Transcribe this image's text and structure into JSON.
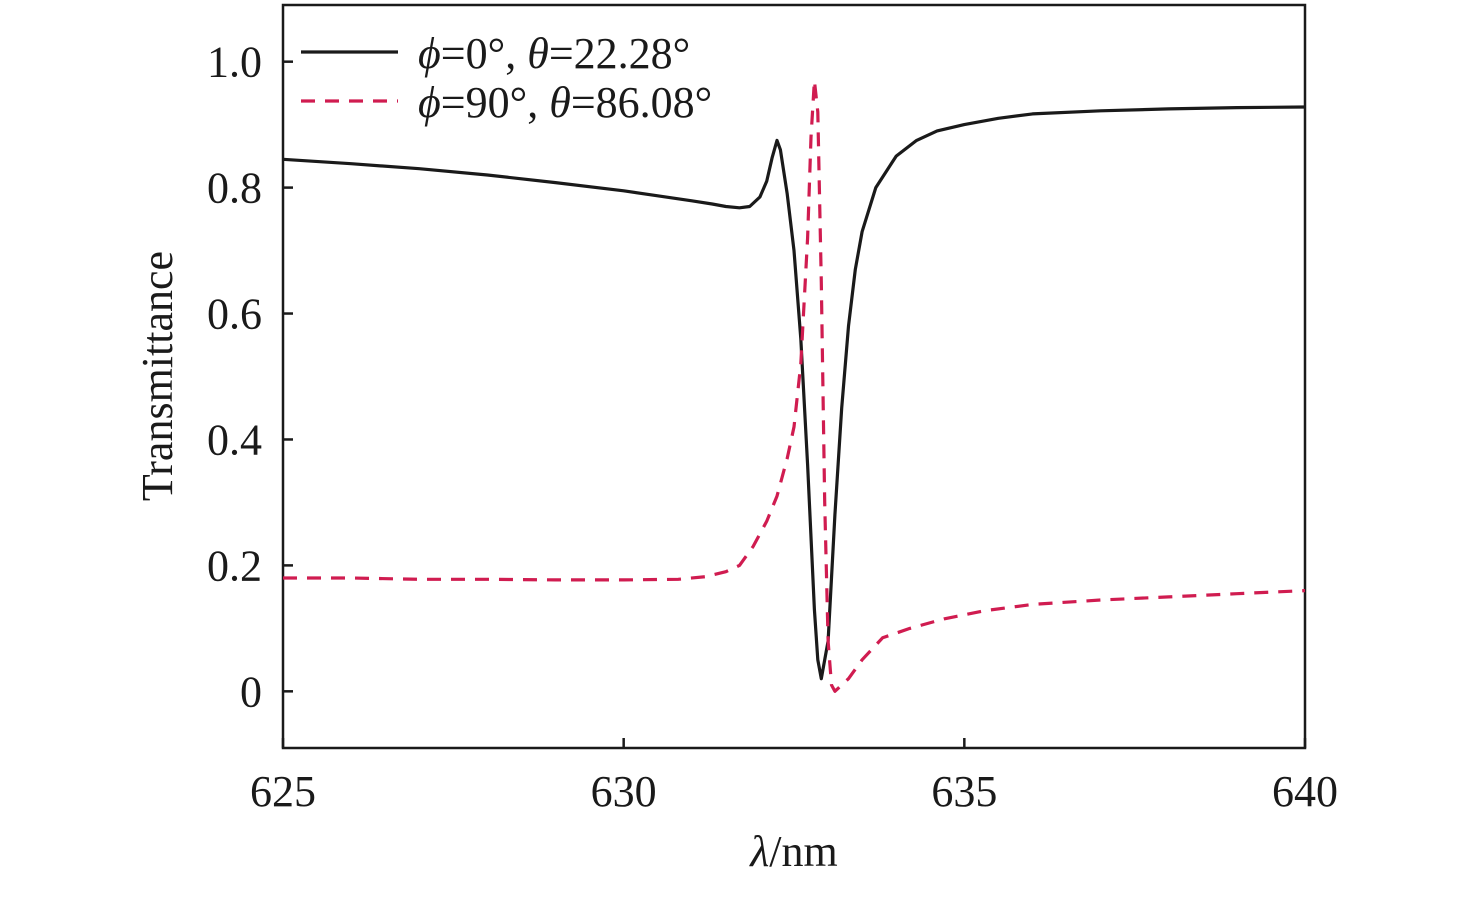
{
  "chart_data": {
    "type": "line",
    "title": "",
    "xlabel_italic": "λ",
    "xlabel_rest": "/nm",
    "ylabel": "Transmittance",
    "xlim": [
      625,
      640
    ],
    "ylim": [
      -0.09,
      1.09
    ],
    "xticks": [
      625,
      630,
      635,
      640
    ],
    "xtick_labels": [
      "625",
      "630",
      "635",
      "640"
    ],
    "yticks": [
      0,
      0.2,
      0.4,
      0.6,
      0.8,
      1.0
    ],
    "ytick_labels": [
      "0",
      "0.2",
      "0.4",
      "0.6",
      "0.8",
      "1.0"
    ],
    "grid": false,
    "legend_position": "top-left",
    "series": [
      {
        "legend_parts": [
          {
            "text": "ϕ",
            "italic": true
          },
          {
            "text": "=0°, ",
            "italic": false
          },
          {
            "text": "θ",
            "italic": true
          },
          {
            "text": "=22.28°",
            "italic": false
          }
        ],
        "style": "solid",
        "color": "#1a1a1a",
        "x": [
          625.0,
          626.0,
          627.0,
          628.0,
          629.0,
          630.0,
          630.5,
          631.0,
          631.3,
          631.5,
          631.7,
          631.85,
          632.0,
          632.1,
          632.18,
          632.25,
          632.3,
          632.4,
          632.5,
          632.6,
          632.7,
          632.8,
          632.85,
          632.9,
          633.0,
          633.1,
          633.2,
          633.3,
          633.4,
          633.5,
          633.7,
          634.0,
          634.3,
          634.6,
          635.0,
          635.5,
          636.0,
          637.0,
          638.0,
          639.0,
          640.0
        ],
        "values": [
          0.845,
          0.838,
          0.83,
          0.82,
          0.808,
          0.795,
          0.787,
          0.779,
          0.774,
          0.77,
          0.768,
          0.77,
          0.785,
          0.81,
          0.848,
          0.875,
          0.86,
          0.79,
          0.7,
          0.56,
          0.36,
          0.13,
          0.05,
          0.02,
          0.08,
          0.28,
          0.45,
          0.58,
          0.67,
          0.73,
          0.8,
          0.85,
          0.875,
          0.89,
          0.9,
          0.91,
          0.917,
          0.922,
          0.925,
          0.927,
          0.928
        ]
      },
      {
        "legend_parts": [
          {
            "text": "ϕ",
            "italic": true
          },
          {
            "text": "=90°, ",
            "italic": false
          },
          {
            "text": "θ",
            "italic": true
          },
          {
            "text": "=86.08°",
            "italic": false
          }
        ],
        "style": "dashed",
        "color": "#d01c50",
        "x": [
          625.0,
          626.0,
          627.0,
          628.0,
          629.0,
          630.0,
          630.8,
          631.2,
          631.5,
          631.7,
          631.9,
          632.1,
          632.25,
          632.4,
          632.5,
          632.6,
          632.7,
          632.75,
          632.8,
          632.85,
          632.9,
          632.95,
          633.0,
          633.05,
          633.1,
          633.15,
          633.2,
          633.3,
          633.5,
          633.8,
          634.2,
          634.7,
          635.3,
          636.0,
          637.0,
          638.0,
          639.0,
          640.0
        ],
        "values": [
          0.18,
          0.18,
          0.178,
          0.178,
          0.177,
          0.177,
          0.178,
          0.182,
          0.19,
          0.2,
          0.23,
          0.27,
          0.31,
          0.37,
          0.42,
          0.52,
          0.72,
          0.88,
          0.97,
          0.92,
          0.65,
          0.3,
          0.08,
          0.01,
          0.0,
          0.005,
          0.01,
          0.02,
          0.05,
          0.085,
          0.1,
          0.115,
          0.128,
          0.138,
          0.145,
          0.15,
          0.155,
          0.16
        ]
      }
    ]
  }
}
